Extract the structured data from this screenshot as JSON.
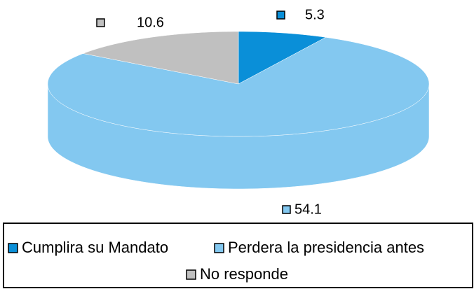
{
  "chart_data": {
    "type": "pie",
    "categories": [
      "Cumplira su Mandato",
      "Perdera la presidencia antes",
      "No responde"
    ],
    "values": [
      5.3,
      54.1,
      10.6
    ],
    "colors": [
      "#0a8fd8",
      "#83c8f0",
      "#c0c0c0"
    ]
  }
}
